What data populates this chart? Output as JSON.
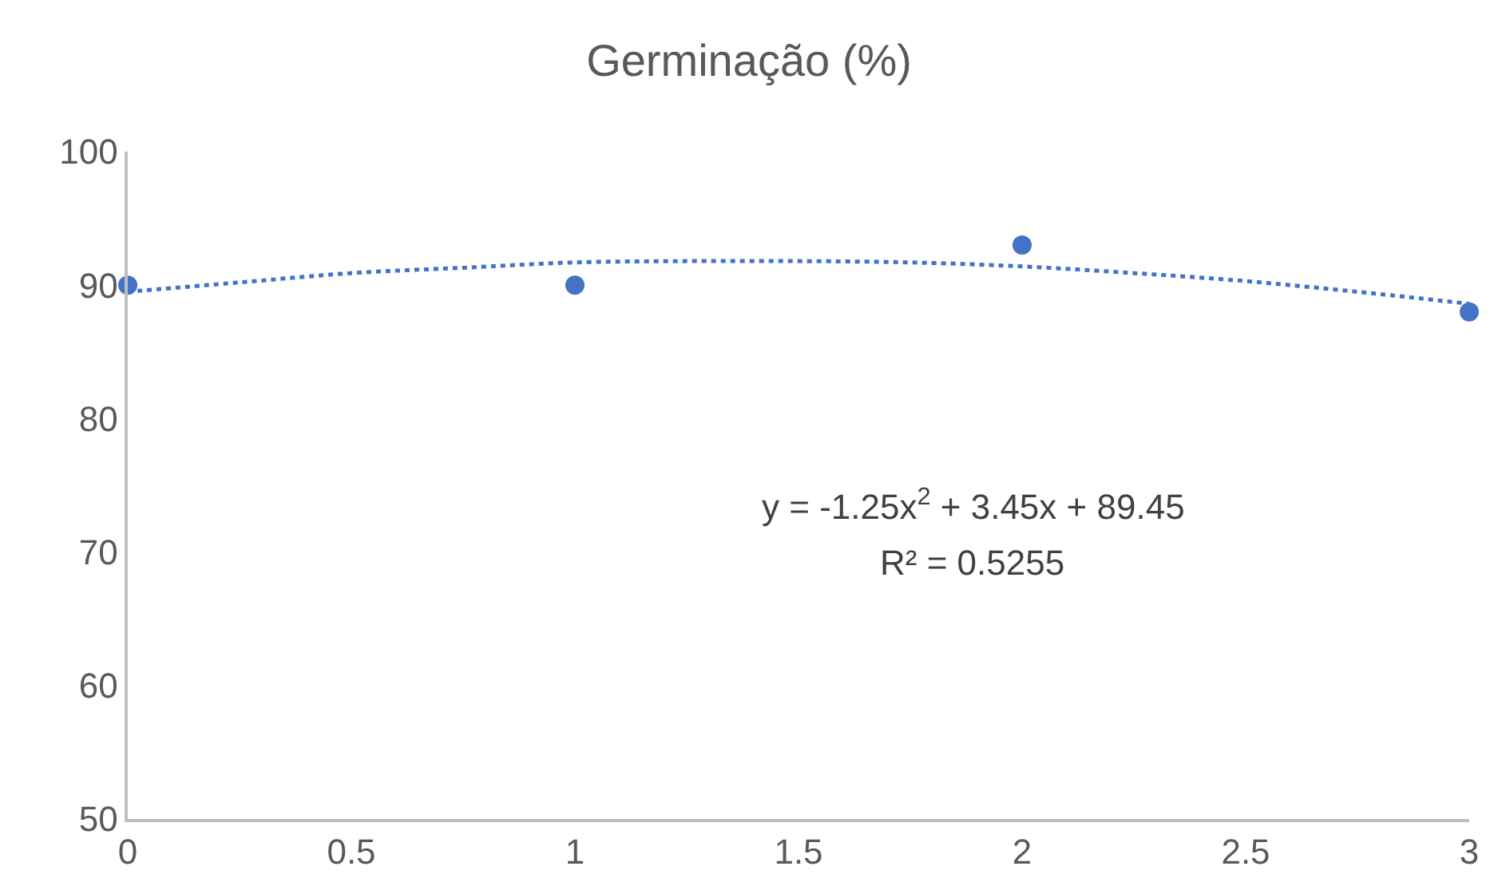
{
  "chart_data": {
    "type": "scatter",
    "title": "Germinação (%)",
    "xlim": [
      0,
      3
    ],
    "xticks": [
      0,
      0.5,
      1,
      1.5,
      2,
      2.5,
      3
    ],
    "ylim": [
      50,
      100
    ],
    "yticks": [
      50,
      60,
      70,
      80,
      90,
      100
    ],
    "marker": "circle",
    "series": [
      {
        "color": "#4472c4",
        "x": [
          0,
          1,
          2,
          3
        ],
        "values": [
          90,
          90,
          93,
          88
        ]
      },
      {
        "type": "line",
        "color": "#4472c4",
        "line_style": "dotted",
        "marker": "none",
        "x": [
          0,
          0.25,
          0.5,
          0.75,
          1,
          1.25,
          1.5,
          1.75,
          2,
          2.25,
          2.5,
          2.75,
          3
        ],
        "values": [
          89.5,
          90.2,
          90.9,
          91.3,
          91.7,
          91.8,
          91.8,
          91.7,
          91.4,
          90.9,
          90.3,
          89.5,
          88.6
        ]
      }
    ],
    "annotations": [
      "y = -1.25x$^{2}$ + 3.45x + 89.45",
      "R² = 0.5255"
    ]
  }
}
